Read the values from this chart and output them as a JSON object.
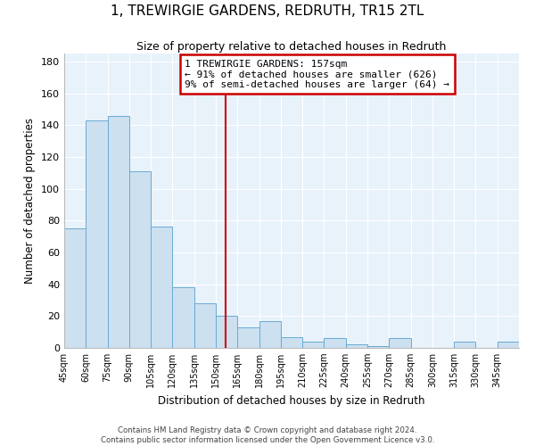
{
  "title": "1, TREWIRGIE GARDENS, REDRUTH, TR15 2TL",
  "subtitle": "Size of property relative to detached houses in Redruth",
  "xlabel": "Distribution of detached houses by size in Redruth",
  "ylabel": "Number of detached properties",
  "bar_color": "#cce0f0",
  "bar_edge_color": "#6aaad4",
  "background_color": "#e8f2fb",
  "bins": [
    45,
    60,
    75,
    90,
    105,
    120,
    135,
    150,
    165,
    180,
    195,
    210,
    225,
    240,
    255,
    270,
    285,
    300,
    315,
    330,
    345,
    360
  ],
  "counts": [
    75,
    143,
    146,
    111,
    76,
    38,
    28,
    20,
    13,
    17,
    7,
    4,
    6,
    2,
    1,
    6,
    0,
    0,
    4,
    0,
    4
  ],
  "vline_x": 157,
  "annotation_line1": "1 TREWIRGIE GARDENS: 157sqm",
  "annotation_line2": "← 91% of detached houses are smaller (626)",
  "annotation_line3": "9% of semi-detached houses are larger (64) →",
  "annotation_box_color": "#ffffff",
  "annotation_edge_color": "#cc0000",
  "vline_color": "#cc0000",
  "ylim": [
    0,
    185
  ],
  "yticks": [
    0,
    20,
    40,
    60,
    80,
    100,
    120,
    140,
    160,
    180
  ],
  "tick_labels": [
    "45sqm",
    "60sqm",
    "75sqm",
    "90sqm",
    "105sqm",
    "120sqm",
    "135sqm",
    "150sqm",
    "165sqm",
    "180sqm",
    "195sqm",
    "210sqm",
    "225sqm",
    "240sqm",
    "255sqm",
    "270sqm",
    "285sqm",
    "300sqm",
    "315sqm",
    "330sqm",
    "345sqm"
  ],
  "footer_line1": "Contains HM Land Registry data © Crown copyright and database right 2024.",
  "footer_line2": "Contains public sector information licensed under the Open Government Licence v3.0."
}
